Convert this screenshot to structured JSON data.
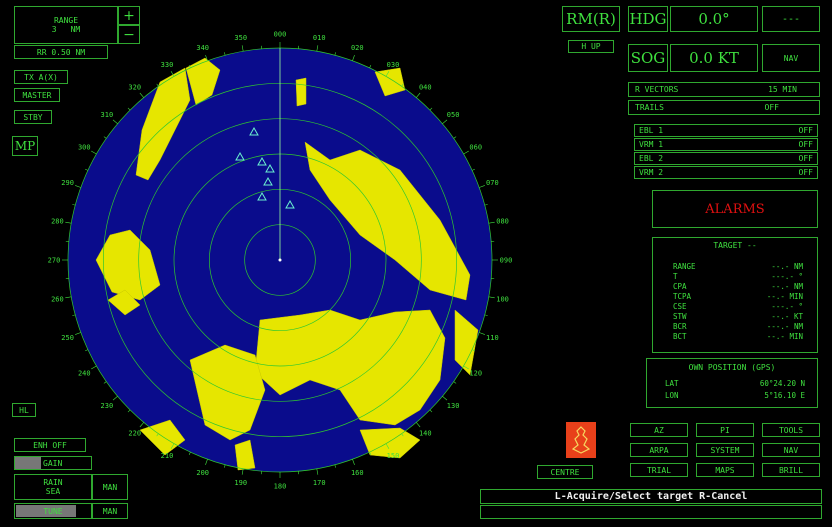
{
  "left": {
    "range_label": "RANGE",
    "range_value": "3",
    "range_unit": "NM",
    "plus": "+",
    "minus": "−",
    "rings": "RR 0.50 NM",
    "tx": "TX A(X)",
    "master": "MASTER",
    "stby": "STBY",
    "mp": "MP",
    "hl": "HL",
    "enh": "ENH OFF",
    "gain": "GAIN",
    "rain": "RAIN",
    "sea": "SEA",
    "rain_mode": "MAN",
    "tune": "TUNE",
    "tune_mode": "MAN"
  },
  "scale": {
    "bearings": [
      "000",
      "010",
      "020",
      "030",
      "040",
      "050",
      "060",
      "070",
      "080",
      "090",
      "100",
      "110",
      "120",
      "130",
      "140",
      "150",
      "160",
      "170",
      "180",
      "190",
      "200",
      "210",
      "220",
      "230",
      "240",
      "250",
      "260",
      "270",
      "280",
      "290",
      "300",
      "310",
      "320",
      "330",
      "340",
      "350"
    ]
  },
  "right": {
    "mode": "RM(R)",
    "orient": "H UP",
    "hdg_label": "HDG",
    "hdg_value": "0.0°",
    "hdg_source": "---",
    "sog_label": "SOG",
    "sog_value": "0.0 KT",
    "sog_source": "NAV",
    "vectors_label": "R VECTORS",
    "vectors_value": "15 MIN",
    "trails_label": "TRAILS",
    "trails_value": "OFF",
    "ebl_vrm": [
      {
        "label": "EBL  1",
        "value": "OFF"
      },
      {
        "label": "VRM  1",
        "value": "OFF"
      },
      {
        "label": "EBL  2",
        "value": "OFF"
      },
      {
        "label": "VRM  2",
        "value": "OFF"
      }
    ],
    "alarms": "ALARMS",
    "target_title": "TARGET --",
    "target_rows": [
      {
        "label": "RANGE",
        "value": "--.- NM"
      },
      {
        "label": "T",
        "value": "---.- °"
      },
      {
        "label": "CPA",
        "value": "--.- NM"
      },
      {
        "label": "TCPA",
        "value": "--.- MIN"
      },
      {
        "label": "CSE",
        "value": "---.- °"
      },
      {
        "label": "STW",
        "value": "--.- KT"
      },
      {
        "label": "BCR",
        "value": "---.- NM"
      },
      {
        "label": "BCT",
        "value": "--.- MIN"
      }
    ],
    "own_title": "OWN POSITION (GPS)",
    "lat_label": "LAT",
    "lat_value": "60°24.20  N",
    "lon_label": "LON",
    "lon_value": "5°16.10  E",
    "buttons": [
      "AZ",
      "PI",
      "TOOLS",
      "ARPA",
      "SYSTEM",
      "NAV",
      "TRIAL",
      "MAPS",
      "BRILL"
    ],
    "centre": "CENTRE",
    "prompt": "L-Acquire/Select target  R-Cancel"
  },
  "colors": {
    "accent": "#3fe03f",
    "border": "#2fa82f",
    "sea": "#0a0c8c",
    "echo": "#e6e600",
    "alarm": "#e01010",
    "logo": "#e8401a"
  }
}
